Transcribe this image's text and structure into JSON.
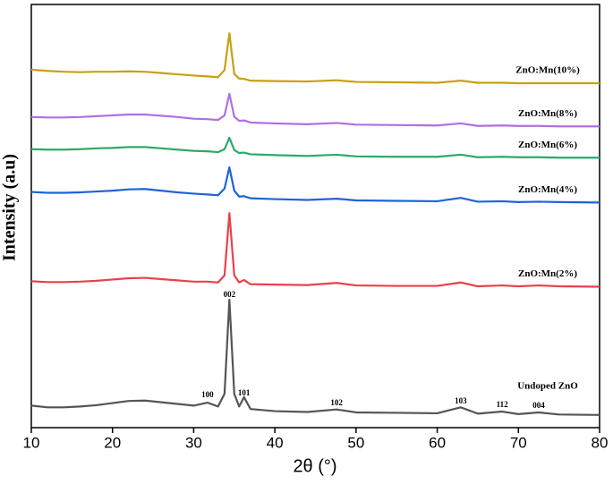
{
  "chart_data": {
    "type": "line",
    "x_label": "2θ (°)",
    "y_label": "Intensity (a.u)",
    "xlim": [
      10,
      80
    ],
    "xticks": [
      10,
      20,
      30,
      40,
      50,
      60,
      70,
      80
    ],
    "ylim": [
      0,
      100
    ],
    "x": [
      10,
      12,
      14,
      16,
      18,
      20,
      22,
      24,
      26,
      28,
      30,
      31.7,
      33,
      33.8,
      34.4,
      35,
      35.6,
      36.2,
      37,
      40,
      44,
      47.6,
      50,
      55,
      60,
      62.9,
      65,
      68,
      70,
      72.5,
      75,
      80
    ],
    "series": [
      {
        "name": "Undoped ZnO",
        "color": "#555555",
        "values": [
          5.2,
          4.8,
          4.8,
          5.0,
          5.3,
          5.8,
          6.3,
          6.4,
          6.0,
          5.6,
          5.2,
          5.9,
          5.0,
          8,
          30.2,
          8,
          5.0,
          7.2,
          4.4,
          3.9,
          3.7,
          4.3,
          3.6,
          3.5,
          3.4,
          4.8,
          3.3,
          3.8,
          3.2,
          3.6,
          3.1,
          3.0
        ]
      },
      {
        "name": "ZnO:Mn(2%)",
        "color": "#e8424a",
        "values": [
          34.6,
          34.4,
          34.4,
          34.5,
          34.7,
          35.0,
          35.3,
          35.4,
          35.1,
          34.8,
          34.5,
          34.5,
          34.3,
          36,
          50.7,
          36,
          34.3,
          34.9,
          33.9,
          33.8,
          33.7,
          34.2,
          33.6,
          33.5,
          33.5,
          34.3,
          33.4,
          33.6,
          33.4,
          33.6,
          33.4,
          33.3
        ]
      },
      {
        "name": "ZnO:Mn(4%)",
        "color": "#1f63d8",
        "values": [
          55.7,
          55.5,
          55.5,
          55.6,
          55.8,
          56.0,
          56.3,
          56.4,
          56.0,
          55.6,
          55.3,
          55.1,
          54.9,
          56.5,
          61.5,
          56,
          54.6,
          54.7,
          54.2,
          54.0,
          53.8,
          54.1,
          53.7,
          53.6,
          53.5,
          54.3,
          53.4,
          53.5,
          53.3,
          53.4,
          53.3,
          53.2
        ]
      },
      {
        "name": "ZnO:Mn(6%)",
        "color": "#2fa868",
        "values": [
          65.8,
          65.7,
          65.7,
          65.8,
          66.0,
          66.1,
          66.3,
          66.3,
          66.0,
          65.7,
          65.4,
          65.3,
          65.1,
          65.8,
          68.5,
          65.6,
          64.9,
          65.0,
          64.6,
          64.4,
          64.2,
          64.5,
          64.1,
          64.0,
          64.0,
          64.5,
          63.9,
          64.0,
          63.9,
          63.9,
          63.8,
          63.8
        ]
      },
      {
        "name": "ZnO:Mn(8%)",
        "color": "#b070e0",
        "values": [
          73.4,
          73.3,
          73.3,
          73.4,
          73.6,
          73.8,
          74.0,
          74.0,
          73.7,
          73.4,
          73.0,
          72.9,
          72.7,
          73.8,
          78.9,
          73.5,
          72.5,
          72.6,
          72.1,
          71.9,
          71.7,
          72.0,
          71.6,
          71.5,
          71.4,
          71.9,
          71.3,
          71.4,
          71.3,
          71.3,
          71.2,
          71.2
        ]
      },
      {
        "name": "ZnO:Mn(10%)",
        "color": "#c9a012",
        "values": [
          84.6,
          84.3,
          84.1,
          84.0,
          84.1,
          84.1,
          84.2,
          84.1,
          83.8,
          83.5,
          83.2,
          83.0,
          82.8,
          84.5,
          93.2,
          83.6,
          82.5,
          82.4,
          82.0,
          81.9,
          81.8,
          82.1,
          81.7,
          81.6,
          81.5,
          82.0,
          81.5,
          81.5,
          81.4,
          81.4,
          81.4,
          81.4
        ]
      }
    ],
    "annotations": [
      {
        "text": "100",
        "x": 31.7,
        "y": 7.6
      },
      {
        "text": "002",
        "x": 34.4,
        "y": 31.3
      },
      {
        "text": "101",
        "x": 36.2,
        "y": 8
      },
      {
        "text": "102",
        "x": 47.6,
        "y": 5.7
      },
      {
        "text": "103",
        "x": 62.9,
        "y": 6.1
      },
      {
        "text": "112",
        "x": 68,
        "y": 5.3
      },
      {
        "text": "004",
        "x": 72.5,
        "y": 5.1
      }
    ]
  }
}
